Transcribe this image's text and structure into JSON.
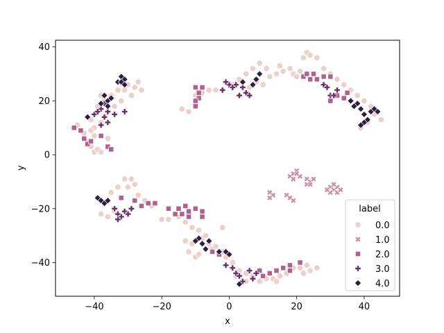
{
  "chart_data": {
    "type": "scatter",
    "title": "",
    "xlabel": "x",
    "ylabel": "y",
    "xlim": [
      -51.5,
      50.5
    ],
    "ylim": [
      -52.5,
      42.5
    ],
    "xticks": [
      -40,
      -20,
      0,
      20,
      40
    ],
    "yticks": [
      -40,
      -20,
      0,
      20,
      40
    ],
    "xtick_labels": [
      "−40",
      "−20",
      "0",
      "20",
      "40"
    ],
    "ytick_labels": [
      "−40",
      "−20",
      "0",
      "20",
      "40"
    ],
    "grid": false,
    "legend": {
      "title": "label",
      "position": "lower-right"
    },
    "series": [
      {
        "name": "0.0",
        "marker": "circle",
        "color": "#ecd0cb",
        "points": [
          [
            -45,
            11
          ],
          [
            -43,
            8
          ],
          [
            -42,
            5
          ],
          [
            -41,
            3
          ],
          [
            -40,
            1
          ],
          [
            -39,
            2
          ],
          [
            -38,
            1
          ],
          [
            -40,
            10
          ],
          [
            -41,
            13
          ],
          [
            -39,
            18
          ],
          [
            -38,
            22
          ],
          [
            -37,
            20
          ],
          [
            -35,
            22
          ],
          [
            -33,
            24
          ],
          [
            -31,
            24
          ],
          [
            -30,
            26
          ],
          [
            -28,
            25
          ],
          [
            -27,
            27
          ],
          [
            -26,
            24
          ],
          [
            -29,
            22
          ],
          [
            -32,
            20
          ],
          [
            -34,
            18
          ],
          [
            -36,
            16
          ],
          [
            -37,
            14
          ],
          [
            -38,
            12
          ],
          [
            -40,
            7
          ],
          [
            -41,
            9
          ],
          [
            -36,
            6
          ],
          [
            -14,
            17
          ],
          [
            -12,
            16
          ],
          [
            -10,
            22
          ],
          [
            -8,
            23
          ],
          [
            -6,
            24
          ],
          [
            -4,
            24
          ],
          [
            -2,
            24
          ],
          [
            1,
            26
          ],
          [
            3,
            28
          ],
          [
            5,
            30
          ],
          [
            7,
            32
          ],
          [
            9,
            34
          ],
          [
            11,
            32
          ],
          [
            12,
            29
          ],
          [
            14,
            30
          ],
          [
            15,
            33
          ],
          [
            16,
            31
          ],
          [
            10,
            26
          ],
          [
            8,
            27
          ],
          [
            6,
            25
          ],
          [
            19,
            30
          ],
          [
            21,
            31
          ],
          [
            22,
            36
          ],
          [
            23,
            38
          ],
          [
            24,
            37
          ],
          [
            26,
            36
          ],
          [
            28,
            32
          ],
          [
            30,
            30
          ],
          [
            32,
            28
          ],
          [
            34,
            26
          ],
          [
            36,
            24
          ],
          [
            38,
            22
          ],
          [
            40,
            20
          ],
          [
            42,
            18
          ],
          [
            44,
            16
          ],
          [
            45,
            13
          ],
          [
            41,
            12
          ],
          [
            39,
            10
          ],
          [
            43,
            15
          ],
          [
            20,
            29
          ],
          [
            18,
            32
          ],
          [
            -31,
            -9
          ],
          [
            -29,
            -9
          ],
          [
            -28,
            -11
          ],
          [
            -33,
            -12
          ],
          [
            -35,
            -14
          ],
          [
            -37,
            -18
          ],
          [
            -38,
            -22
          ],
          [
            -36,
            -23
          ],
          [
            -34,
            -21
          ],
          [
            -30,
            -12
          ],
          [
            -27,
            -15
          ],
          [
            -25,
            -17
          ],
          [
            -23,
            -19
          ],
          [
            -20,
            -24
          ],
          [
            -18,
            -24
          ],
          [
            -15,
            -23
          ],
          [
            -13,
            -25
          ],
          [
            -11,
            -27
          ],
          [
            -9,
            -28
          ],
          [
            -8,
            -31
          ],
          [
            -6,
            -33
          ],
          [
            -5,
            -35
          ],
          [
            -4,
            -34
          ],
          [
            -2,
            -36
          ],
          [
            -1,
            -38
          ],
          [
            1,
            -40
          ],
          [
            -11,
            -33
          ],
          [
            -12,
            -36
          ],
          [
            -10,
            -38
          ],
          [
            -9,
            -37
          ],
          [
            -7,
            -30
          ],
          [
            -2,
            -27
          ],
          [
            -13,
            -32
          ],
          [
            2,
            -45
          ],
          [
            3,
            -43
          ],
          [
            5,
            -44
          ],
          [
            7,
            -45
          ],
          [
            9,
            -47
          ],
          [
            11,
            -46
          ],
          [
            13,
            -46
          ],
          [
            15,
            -45
          ],
          [
            17,
            -44
          ],
          [
            19,
            -42
          ],
          [
            21,
            -42
          ],
          [
            23,
            -41
          ],
          [
            24,
            -43
          ],
          [
            26,
            -42
          ],
          [
            22,
            -44
          ],
          [
            5,
            -47
          ],
          [
            14,
            -47
          ]
        ]
      },
      {
        "name": "1.0",
        "marker": "x",
        "color": "#ca8fa9",
        "points": [
          [
            12,
            -14
          ],
          [
            13,
            -15
          ],
          [
            12,
            -16
          ],
          [
            17,
            -15
          ],
          [
            18,
            -16
          ],
          [
            19,
            -17
          ],
          [
            18,
            -8
          ],
          [
            19,
            -7
          ],
          [
            20,
            -6
          ],
          [
            21,
            -8
          ],
          [
            19,
            -9
          ],
          [
            20,
            -7
          ],
          [
            23,
            -9
          ],
          [
            24,
            -10
          ],
          [
            25,
            -9
          ],
          [
            23,
            -11
          ],
          [
            24,
            -11
          ],
          [
            30,
            -12
          ],
          [
            31,
            -13
          ],
          [
            32,
            -12
          ],
          [
            30,
            -14
          ],
          [
            32,
            -14
          ],
          [
            33,
            -13
          ],
          [
            29,
            -13
          ],
          [
            31,
            -11
          ]
        ]
      },
      {
        "name": "2.0",
        "marker": "square",
        "color": "#b0628d",
        "points": [
          [
            -46,
            10
          ],
          [
            -44,
            9
          ],
          [
            -43,
            6
          ],
          [
            -42,
            4
          ],
          [
            -41,
            5
          ],
          [
            -36,
            3
          ],
          [
            -35,
            2
          ],
          [
            -38,
            7
          ],
          [
            -10,
            25
          ],
          [
            -9,
            23
          ],
          [
            -9,
            21
          ],
          [
            -10,
            20
          ],
          [
            -10,
            18
          ],
          [
            -8,
            25
          ],
          [
            22,
            29
          ],
          [
            24,
            28
          ],
          [
            26,
            28
          ],
          [
            28,
            29
          ],
          [
            30,
            29
          ],
          [
            25,
            30
          ],
          [
            23,
            30
          ],
          [
            32,
            22
          ],
          [
            35,
            23
          ],
          [
            34,
            21
          ],
          [
            30,
            20
          ],
          [
            -32,
            -16
          ],
          [
            -28,
            -17
          ],
          [
            -26,
            -19
          ],
          [
            -24,
            -18
          ],
          [
            -22,
            -18
          ],
          [
            -18,
            -20
          ],
          [
            -15,
            -20
          ],
          [
            -13,
            -19
          ],
          [
            -12,
            -21
          ],
          [
            -10,
            -20
          ],
          [
            -8,
            -21
          ],
          [
            -8,
            -23
          ],
          [
            -12,
            -23
          ],
          [
            -14,
            -22
          ],
          [
            -16,
            -22
          ],
          [
            -5,
            -36
          ],
          [
            -3,
            -37
          ],
          [
            10,
            -45
          ],
          [
            12,
            -44
          ],
          [
            14,
            -43
          ],
          [
            16,
            -42
          ],
          [
            18,
            -41
          ],
          [
            9,
            -43
          ],
          [
            21,
            -40
          ],
          [
            18,
            -43
          ]
        ]
      },
      {
        "name": "3.0",
        "marker": "plus",
        "color": "#6a3068",
        "points": [
          [
            -40,
            15
          ],
          [
            -38,
            17
          ],
          [
            -37,
            14
          ],
          [
            -36,
            12
          ],
          [
            -38,
            11
          ],
          [
            -39,
            16
          ],
          [
            -36,
            16
          ],
          [
            -34,
            15
          ],
          [
            -37,
            19
          ],
          [
            -31,
            16
          ],
          [
            -2,
            24
          ],
          [
            0,
            26
          ],
          [
            2,
            26
          ],
          [
            4,
            25
          ],
          [
            5,
            23
          ],
          [
            6,
            22
          ],
          [
            3,
            22
          ],
          [
            1,
            25
          ],
          [
            -1,
            27
          ],
          [
            28,
            26
          ],
          [
            29,
            25
          ],
          [
            30,
            22
          ],
          [
            31,
            22
          ],
          [
            32,
            24
          ],
          [
            -34,
            -20
          ],
          [
            -33,
            -22
          ],
          [
            -32,
            -23
          ],
          [
            -31,
            -21
          ],
          [
            -30,
            -22
          ],
          [
            -33,
            -24
          ],
          [
            -29,
            -20
          ],
          [
            -1,
            -41
          ],
          [
            1,
            -42
          ],
          [
            2,
            -44
          ],
          [
            3,
            -45
          ],
          [
            4,
            -47
          ],
          [
            6,
            -43
          ],
          [
            7,
            -46
          ],
          [
            8,
            -44
          ]
        ]
      },
      {
        "name": "4.0",
        "marker": "diamond",
        "color": "#2d1e3e",
        "points": [
          [
            -37,
            22
          ],
          [
            -36,
            20
          ],
          [
            -35,
            21
          ],
          [
            -38,
            19
          ],
          [
            -36,
            18
          ],
          [
            -32,
            29
          ],
          [
            -31,
            28
          ],
          [
            -33,
            27
          ],
          [
            -32,
            27
          ],
          [
            -31,
            26
          ],
          [
            -42,
            14
          ],
          [
            7,
            26
          ],
          [
            8,
            28
          ],
          [
            9,
            30
          ],
          [
            4,
            27
          ],
          [
            36,
            20
          ],
          [
            38,
            19
          ],
          [
            39,
            17
          ],
          [
            40,
            15
          ],
          [
            41,
            13
          ],
          [
            42,
            16
          ],
          [
            43,
            17
          ],
          [
            44,
            16
          ],
          [
            40,
            12
          ],
          [
            39,
            11
          ],
          [
            37,
            18
          ],
          [
            -39,
            -16
          ],
          [
            -38,
            -17
          ],
          [
            -37,
            -18
          ],
          [
            -36,
            -17
          ],
          [
            -9,
            -31
          ],
          [
            -8,
            -33
          ],
          [
            -7,
            -35
          ],
          [
            -6,
            -32
          ],
          [
            -10,
            -32
          ],
          [
            -1,
            -36
          ],
          [
            0,
            -37
          ],
          [
            -3,
            -36
          ],
          [
            3,
            -48
          ]
        ]
      }
    ]
  }
}
